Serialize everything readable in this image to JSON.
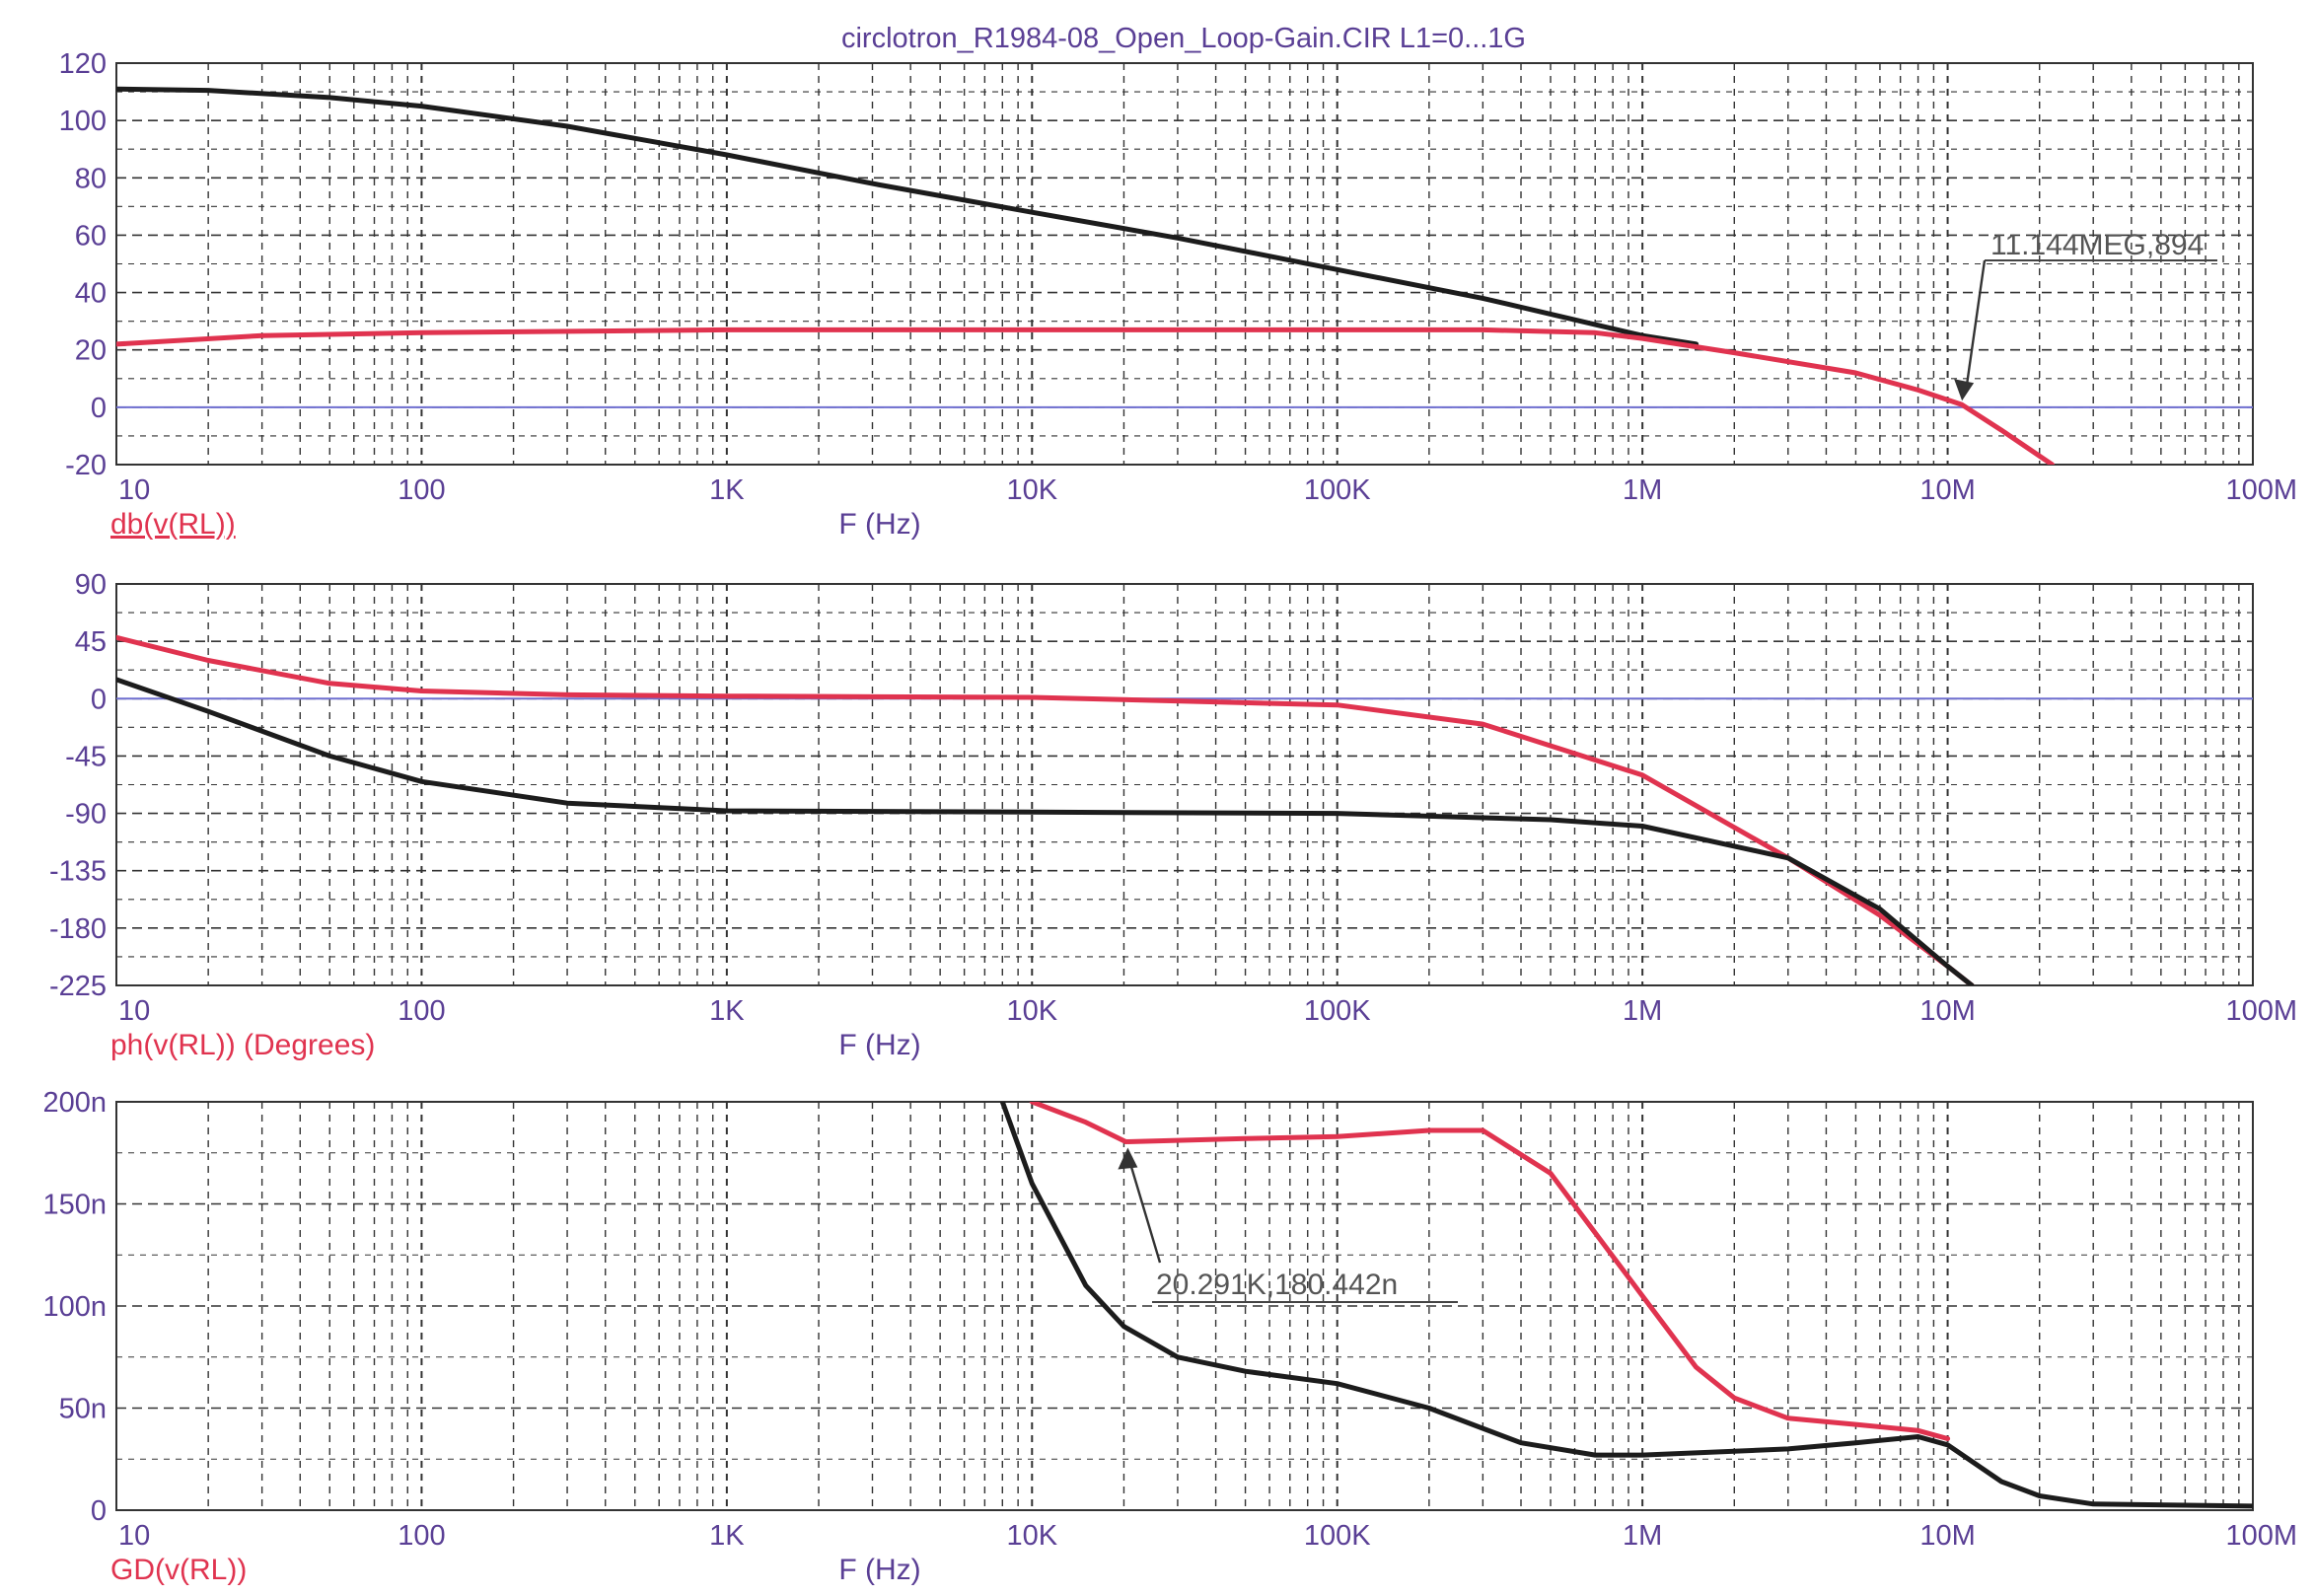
{
  "title": "circlotron_R1984-08_Open_Loop-Gain.CIR L1=0...1G",
  "colors": {
    "red": "#e0334f",
    "black": "#1c1c1c",
    "axis": "#6a4fa6",
    "grid": "#333333",
    "label": "#5a3f95"
  },
  "chart_data": [
    {
      "type": "line",
      "x_scale": "log",
      "xlabel": "F (Hz)",
      "ylabel": "db(v(RL))",
      "xlim": [
        10,
        100000000
      ],
      "ylim": [
        -20,
        120
      ],
      "xticks": [
        10,
        100,
        1000,
        10000,
        100000,
        1000000,
        10000000,
        100000000
      ],
      "xtick_labels": [
        "10",
        "100",
        "1K",
        "10K",
        "100K",
        "1M",
        "10M",
        "100M"
      ],
      "yticks": [
        -20,
        0,
        20,
        40,
        60,
        80,
        100,
        120
      ],
      "ytick_labels": [
        "-20",
        "0",
        "20",
        "40",
        "60",
        "80",
        "100",
        "120"
      ],
      "grid": true,
      "reference_line": 0,
      "series": [
        {
          "color": "black",
          "x": [
            10,
            20,
            50,
            100,
            300,
            1000,
            3000,
            10000,
            30000,
            100000,
            300000,
            1000000,
            1500000
          ],
          "y": [
            111,
            110.5,
            108,
            105,
            98,
            88,
            78,
            68,
            59,
            48,
            38,
            25,
            22
          ]
        },
        {
          "color": "red",
          "x": [
            10,
            30,
            100,
            1000,
            10000,
            100000,
            300000,
            700000,
            1000000,
            2000000,
            5000000,
            8000000,
            11144000,
            15000000,
            22000000
          ],
          "y": [
            22,
            25,
            26,
            27,
            27,
            27,
            27,
            26,
            24,
            19,
            12,
            6,
            0.894,
            -8,
            -20
          ]
        }
      ],
      "annotations": [
        {
          "label": "11.144MEG,894",
          "x": 11144000,
          "y": 0.894
        }
      ]
    },
    {
      "type": "line",
      "x_scale": "log",
      "xlabel": "F (Hz)",
      "ylabel": "ph(v(RL)) (Degrees)",
      "xlim": [
        10,
        100000000
      ],
      "ylim": [
        -225,
        90
      ],
      "xticks": [
        10,
        100,
        1000,
        10000,
        100000,
        1000000,
        10000000,
        100000000
      ],
      "xtick_labels": [
        "10",
        "100",
        "1K",
        "10K",
        "100K",
        "1M",
        "10M",
        "100M"
      ],
      "yticks": [
        -225,
        -180,
        -135,
        -90,
        -45,
        0,
        45,
        90
      ],
      "ytick_labels": [
        "-225",
        "-180",
        "-135",
        "-90",
        "-45",
        "0",
        "45",
        "90"
      ],
      "grid": true,
      "reference_line": 0,
      "series": [
        {
          "color": "red",
          "x": [
            10,
            20,
            50,
            100,
            300,
            1000,
            10000,
            100000,
            300000,
            1000000,
            3000000,
            6000000,
            10000000,
            12000000
          ],
          "y": [
            48,
            30,
            12,
            6,
            3,
            2,
            1,
            -5,
            -20,
            -60,
            -125,
            -170,
            -210,
            -225
          ]
        },
        {
          "color": "black",
          "x": [
            10,
            20,
            50,
            100,
            300,
            1000,
            10000,
            100000,
            500000,
            1000000,
            3000000,
            6000000,
            10000000,
            12000000
          ],
          "y": [
            15,
            -10,
            -45,
            -65,
            -82,
            -88,
            -89,
            -90,
            -95,
            -100,
            -125,
            -165,
            -210,
            -225
          ]
        }
      ]
    },
    {
      "type": "line",
      "x_scale": "log",
      "xlabel": "F (Hz)",
      "ylabel": "GD(v(RL))",
      "xlim": [
        10,
        100000000
      ],
      "ylim": [
        0,
        200
      ],
      "xticks": [
        10,
        100,
        1000,
        10000,
        100000,
        1000000,
        10000000,
        100000000
      ],
      "xtick_labels": [
        "10",
        "100",
        "1K",
        "10K",
        "100K",
        "1M",
        "10M",
        "100M"
      ],
      "yticks": [
        0,
        50,
        100,
        150,
        200
      ],
      "ytick_labels": [
        "0",
        "50n",
        "100n",
        "150n",
        "200n"
      ],
      "grid": true,
      "series": [
        {
          "color": "red",
          "x": [
            10000,
            15000,
            20291,
            50000,
            100000,
            200000,
            300000,
            500000,
            1000000,
            1500000,
            2000000,
            3000000,
            5000000,
            8000000,
            10000000
          ],
          "y": [
            200,
            190,
            180.442,
            182,
            183,
            186,
            186,
            165,
            105,
            70,
            55,
            45,
            42,
            39,
            35
          ]
        },
        {
          "color": "black",
          "x": [
            8000,
            10000,
            15000,
            20000,
            30000,
            50000,
            100000,
            200000,
            400000,
            700000,
            1000000,
            3000000,
            5000000,
            8000000,
            10000000,
            15000000,
            20000000,
            30000000,
            100000000
          ],
          "y": [
            200,
            160,
            110,
            90,
            75,
            68,
            62,
            50,
            33,
            27,
            27,
            30,
            33,
            36,
            32,
            14,
            7,
            3,
            2
          ]
        }
      ],
      "annotations": [
        {
          "label": "20.291K,180.442n",
          "x": 20291,
          "y": 180.442
        }
      ]
    }
  ]
}
